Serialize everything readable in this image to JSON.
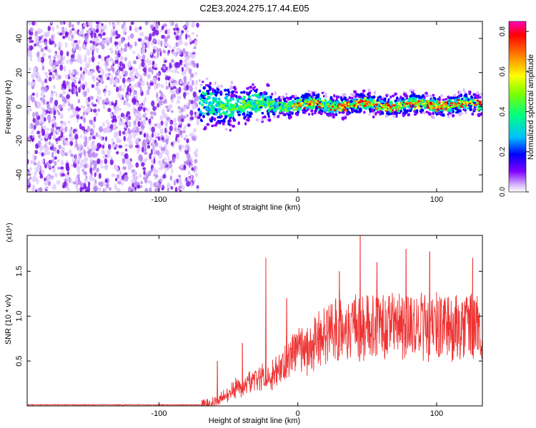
{
  "title": "C2E3.2024.275.17.44.E05",
  "chart_data": [
    {
      "type": "heatmap",
      "xlabel": "Height of straight line (km)",
      "ylabel": "Frequency (Hz)",
      "xlim": [
        -195,
        133
      ],
      "ylim": [
        -50,
        50
      ],
      "xticks": [
        -100,
        0,
        100
      ],
      "yticks": [
        -40,
        -20,
        0,
        20,
        40
      ],
      "noise_region_x": [
        -195,
        -72
      ],
      "signal_region_x": [
        -72,
        133
      ],
      "signal_center_frequency": 1,
      "colorbar": {
        "label": "Normalized spectral amplitude",
        "range": [
          0.0,
          0.85
        ],
        "ticks": [
          0.0,
          0.2,
          0.4,
          0.6,
          0.8
        ],
        "colors": [
          "#ffffff",
          "#d8b8ff",
          "#8000ff",
          "#0000ff",
          "#00c0ff",
          "#00ff80",
          "#80ff00",
          "#ffff00",
          "#ff8000",
          "#ff0000",
          "#ff00c0"
        ]
      },
      "grid": false
    },
    {
      "type": "line",
      "xlabel": "Height of straight line (km)",
      "ylabel": "SNR (10 * v/v)",
      "y_multiplier": "(x10⁴)",
      "xlim": [
        -195,
        133
      ],
      "ylim": [
        0,
        1.9
      ],
      "xticks": [
        -100,
        0,
        100
      ],
      "yticks": [
        0.5,
        1.0,
        1.5
      ],
      "ytick_labels": [
        "0.5",
        "1.0",
        "1.5"
      ],
      "series": [
        {
          "color": "#ee3333",
          "profile": [
            {
              "x": -195,
              "y": 0.01
            },
            {
              "x": -70,
              "y": 0.01
            },
            {
              "x": -58,
              "y": 0.05
            },
            {
              "x": -50,
              "y": 0.15
            },
            {
              "x": -40,
              "y": 0.25
            },
            {
              "x": -30,
              "y": 0.32
            },
            {
              "x": -20,
              "y": 0.38
            },
            {
              "x": -10,
              "y": 0.5
            },
            {
              "x": 0,
              "y": 0.62
            },
            {
              "x": 10,
              "y": 0.75
            },
            {
              "x": 20,
              "y": 0.85
            },
            {
              "x": 30,
              "y": 0.92
            },
            {
              "x": 40,
              "y": 0.95
            },
            {
              "x": 60,
              "y": 0.95
            },
            {
              "x": 80,
              "y": 0.95
            },
            {
              "x": 100,
              "y": 0.95
            },
            {
              "x": 120,
              "y": 0.95
            },
            {
              "x": 133,
              "y": 0.92
            }
          ],
          "peaks": [
            {
              "x": -58,
              "y": 0.5
            },
            {
              "x": -40,
              "y": 0.7
            },
            {
              "x": -23,
              "y": 1.65
            },
            {
              "x": -8,
              "y": 1.2
            },
            {
              "x": 30,
              "y": 1.5
            },
            {
              "x": 45,
              "y": 1.9
            },
            {
              "x": 57,
              "y": 1.6
            },
            {
              "x": 78,
              "y": 1.75
            },
            {
              "x": 95,
              "y": 1.72
            },
            {
              "x": 126,
              "y": 1.65
            }
          ]
        }
      ],
      "grid": false
    }
  ]
}
